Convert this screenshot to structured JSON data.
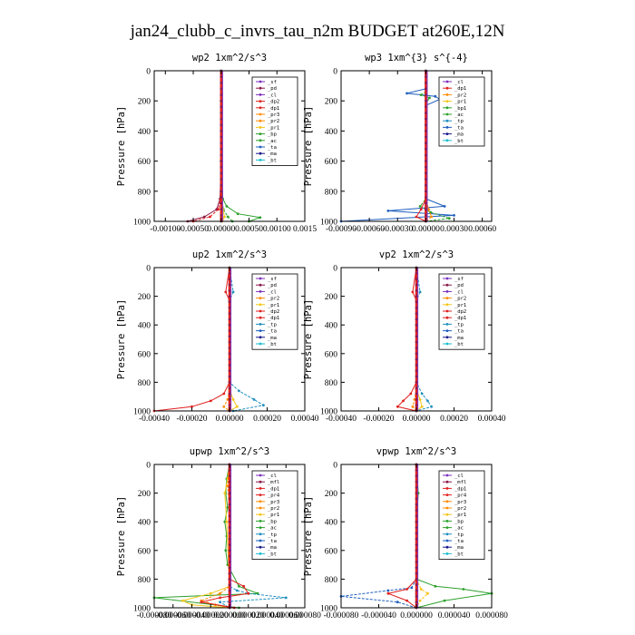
{
  "figure": {
    "title": "jan24_clubb_c_invrs_tau_n2m  BUDGET at260E,12N"
  },
  "colors": {
    "sf": "#7b2fbe",
    "pd": "#8b1a4a",
    "cl": "#7b2fbe",
    "dp2": "#e0201e",
    "dp1": "#e0201e",
    "pr3": "#ff8c00",
    "pr2": "#ff8c00",
    "pr1": "#f5c518",
    "bp": "#2ca02c",
    "ac": "#2ca02c",
    "ta": "#1f5fbf",
    "tp": "#1f8fbf",
    "ma": "#1a1a8c",
    "bt": "#17becf",
    "mfl": "#8b1a4a",
    "pr4": "#e0201e",
    "bp1": "#2ca02c",
    "budget_line": "#e0201e"
  },
  "chart_data": [
    {
      "type": "line",
      "title": "wp2  1xm^2/s^3",
      "ylabel": "Pressure [hPa]",
      "xlim": [
        -0.0012,
        0.0015
      ],
      "ylim": [
        1000,
        0
      ],
      "x_ticks": [
        -0.001,
        -0.0005,
        0.0,
        0.0005,
        0.001,
        0.0015
      ],
      "x_tick_labels": [
        "-0.00100",
        "-0.00050",
        "0.00000",
        "0.00050",
        "0.00100",
        "0.0015"
      ],
      "y_ticks": [
        0,
        200,
        400,
        600,
        800,
        1000
      ],
      "y_tick_labels": [
        "0",
        "200",
        "400",
        "600",
        "800",
        "1000"
      ],
      "legend_position": "top-right",
      "legend": [
        "_sf",
        "_pd",
        "_cl",
        "_dp2",
        "_dp1",
        "_pr3",
        "_pr2",
        "_pr1",
        "_bp",
        "_ac",
        "_ta",
        "_ma",
        "_bt"
      ],
      "series": [
        {
          "key": "pd",
          "name": "_pd",
          "x": [
            0,
            0,
            0,
            -2e-05,
            -8e-05,
            -0.0003,
            -0.0006
          ],
          "y": [
            0,
            200,
            600,
            850,
            920,
            970,
            1000
          ]
        },
        {
          "key": "dp1",
          "name": "_dp1",
          "x": [
            0,
            0,
            0,
            -1e-05,
            -5e-05,
            -0.0002,
            -0.0005
          ],
          "y": [
            0,
            200,
            600,
            850,
            920,
            970,
            1000
          ]
        },
        {
          "key": "ac",
          "name": "_ac",
          "x": [
            0,
            1e-05,
            0,
            3e-05,
            0.0001,
            0.0003,
            0.0007,
            0.0005
          ],
          "y": [
            0,
            150,
            600,
            850,
            900,
            950,
            975,
            1000
          ]
        },
        {
          "key": "bp",
          "name": "_bp",
          "x": [
            0,
            0,
            0,
            1e-05,
            4e-05,
            0.00012,
            0.0002
          ],
          "y": [
            0,
            200,
            600,
            850,
            920,
            970,
            1000
          ]
        },
        {
          "key": "pr1",
          "name": "_pr1",
          "x": [
            0,
            0,
            0,
            1e-05,
            3e-05,
            6e-05,
            2e-05
          ],
          "y": [
            0,
            200,
            600,
            850,
            920,
            970,
            1000
          ]
        },
        {
          "key": "bt",
          "name": "_bt",
          "x": [
            0,
            0,
            0,
            0,
            0,
            0
          ],
          "y": [
            0,
            200,
            400,
            600,
            800,
            1000
          ]
        }
      ]
    },
    {
      "type": "line",
      "title": "wp3  1xm^{3} s^{-4}",
      "ylabel": "Pressure [hPa]",
      "xlim": [
        -0.0009,
        0.0007
      ],
      "ylim": [
        1000,
        0
      ],
      "x_ticks": [
        -0.0009,
        -0.0006,
        -0.0003,
        0.0,
        0.0003,
        0.0006
      ],
      "x_tick_labels": [
        "-0.00090",
        "-0.00060",
        "-0.00030",
        "0.00000",
        "0.00030",
        "0.00060"
      ],
      "y_ticks": [
        0,
        200,
        400,
        600,
        800,
        1000
      ],
      "y_tick_labels": [
        "0",
        "200",
        "400",
        "600",
        "800",
        "1000"
      ],
      "legend_position": "top-right",
      "legend": [
        "_cl",
        "_dp1",
        "_pr2",
        "_pr1",
        "_bp1",
        "_ac",
        "_tp",
        "_ta",
        "_ma",
        "_bt"
      ],
      "series": [
        {
          "key": "ta",
          "name": "_ta",
          "x": [
            0,
            0,
            -0.0002,
            0.0001,
            0.00015,
            0,
            0,
            0.0002,
            -0.0004,
            0.0003,
            -0.0009
          ],
          "y": [
            0,
            120,
            150,
            170,
            190,
            230,
            850,
            900,
            930,
            960,
            1000
          ]
        },
        {
          "key": "ac",
          "name": "_ac",
          "x": [
            0,
            0,
            -5e-05,
            4e-05,
            0,
            0,
            -6e-05,
            5e-05,
            0.00025,
            0
          ],
          "y": [
            0,
            140,
            160,
            180,
            220,
            850,
            900,
            940,
            980,
            1000
          ]
        },
        {
          "key": "dp1",
          "name": "_dp1",
          "x": [
            0,
            0,
            0,
            -5e-05,
            -0.0001,
            0
          ],
          "y": [
            0,
            400,
            850,
            920,
            970,
            1000
          ]
        },
        {
          "key": "pr2",
          "name": "_pr2",
          "x": [
            0,
            0,
            0,
            3e-05,
            6e-05,
            0
          ],
          "y": [
            0,
            400,
            850,
            920,
            970,
            1000
          ]
        },
        {
          "key": "bt",
          "name": "_bt",
          "x": [
            0,
            0,
            0,
            0
          ],
          "y": [
            0,
            400,
            800,
            1000
          ]
        }
      ]
    },
    {
      "type": "line",
      "title": "up2  1xm^2/s^3",
      "ylabel": "Pressure [hPa]",
      "xlim": [
        -0.0004,
        0.0004
      ],
      "ylim": [
        1000,
        0
      ],
      "x_ticks": [
        -0.0004,
        -0.0002,
        0.0,
        0.0002,
        0.0004
      ],
      "x_tick_labels": [
        "-0.00040",
        "-0.00020",
        "0.00000",
        "0.00020",
        "0.00040"
      ],
      "y_ticks": [
        0,
        200,
        400,
        600,
        800,
        1000
      ],
      "y_tick_labels": [
        "0",
        "200",
        "400",
        "600",
        "800",
        "1000"
      ],
      "legend_position": "top-right",
      "legend": [
        "_sf",
        "_pd",
        "_cl",
        "_pr2",
        "_pr1",
        "_dp2",
        "_dp1",
        "_tp",
        "_ta",
        "_ma",
        "_bt"
      ],
      "series": [
        {
          "key": "dp2",
          "name": "_dp2",
          "x": [
            0,
            -2e-05,
            0,
            0,
            -3e-05,
            -0.0001,
            -0.0002,
            -0.0004
          ],
          "y": [
            0,
            170,
            230,
            800,
            880,
            930,
            970,
            1000
          ]
        },
        {
          "key": "tp",
          "name": "_tp",
          "x": [
            0,
            2e-05,
            0,
            0,
            5e-05,
            0.00013,
            0.00018,
            2e-05
          ],
          "y": [
            0,
            170,
            230,
            800,
            860,
            920,
            960,
            1000
          ]
        },
        {
          "key": "pr1",
          "name": "_pr1",
          "x": [
            0,
            0,
            0,
            2e-05,
            4e-05,
            0
          ],
          "y": [
            0,
            400,
            850,
            920,
            970,
            1000
          ]
        },
        {
          "key": "pr2",
          "name": "_pr2",
          "x": [
            0,
            0,
            0,
            -1e-05,
            -3e-05,
            0
          ],
          "y": [
            0,
            400,
            850,
            920,
            970,
            1000
          ]
        },
        {
          "key": "bt",
          "name": "_bt",
          "x": [
            0,
            0,
            0,
            0
          ],
          "y": [
            0,
            400,
            800,
            1000
          ]
        }
      ]
    },
    {
      "type": "line",
      "title": "vp2  1xm^2/s^3",
      "ylabel": "Pressure [hPa]",
      "xlim": [
        -0.0004,
        0.0004
      ],
      "ylim": [
        1000,
        0
      ],
      "x_ticks": [
        -0.0004,
        -0.0002,
        0.0,
        0.0002,
        0.0004
      ],
      "x_tick_labels": [
        "-0.00040",
        "-0.00020",
        "0.00000",
        "0.00020",
        "0.00040"
      ],
      "y_ticks": [
        0,
        200,
        400,
        600,
        800,
        1000
      ],
      "y_tick_labels": [
        "0",
        "200",
        "400",
        "600",
        "800",
        "1000"
      ],
      "legend_position": "top-right",
      "legend": [
        "_sf",
        "_pd",
        "_cl",
        "_pr2",
        "_pr1",
        "_dp2",
        "_dp1",
        "_tp",
        "_ta",
        "_ma",
        "_bt"
      ],
      "series": [
        {
          "key": "dp2",
          "name": "_dp2",
          "x": [
            0,
            -2e-05,
            0,
            0,
            -3e-05,
            -7e-05,
            -0.0001,
            0
          ],
          "y": [
            0,
            170,
            230,
            800,
            880,
            930,
            970,
            1000
          ]
        },
        {
          "key": "tp",
          "name": "_tp",
          "x": [
            0,
            2e-05,
            0,
            0,
            3e-05,
            6e-05,
            8e-05,
            0
          ],
          "y": [
            0,
            170,
            230,
            800,
            880,
            930,
            970,
            1000
          ]
        },
        {
          "key": "pr1",
          "name": "_pr1",
          "x": [
            0,
            0,
            0,
            2e-05,
            3e-05,
            0
          ],
          "y": [
            0,
            400,
            850,
            920,
            970,
            1000
          ]
        },
        {
          "key": "pr2",
          "name": "_pr2",
          "x": [
            0,
            0,
            0,
            -1e-05,
            -2e-05,
            0
          ],
          "y": [
            0,
            400,
            850,
            920,
            970,
            1000
          ]
        },
        {
          "key": "bt",
          "name": "_bt",
          "x": [
            0,
            0,
            0,
            0
          ],
          "y": [
            0,
            400,
            800,
            1000
          ]
        }
      ]
    },
    {
      "type": "line",
      "title": "upwp  1xm^2/s^3",
      "ylabel": "Pressure [hPa]",
      "xlim": [
        -8e-05,
        8e-05
      ],
      "ylim": [
        1000,
        0
      ],
      "x_ticks": [
        -8e-05,
        -6e-05,
        -4e-05,
        -2e-05,
        0.0,
        2e-05,
        4e-05,
        6e-05,
        8e-05
      ],
      "x_tick_labels": [
        "-0.000080",
        "-0.000060",
        "-0.000040",
        "-0.000020",
        "0.000000",
        "0.000020",
        "0.000040",
        "0.000060",
        "0.000080"
      ],
      "y_ticks": [
        0,
        200,
        400,
        600,
        800,
        1000
      ],
      "y_tick_labels": [
        "0",
        "200",
        "400",
        "600",
        "800",
        "1000"
      ],
      "legend_position": "top-right",
      "legend": [
        "_cl",
        "_mfl",
        "_dp1",
        "_pr4",
        "_pr3",
        "_pr2",
        "_pr1",
        "_bp",
        "_ac",
        "_tp",
        "_ta",
        "_ma",
        "_bt"
      ],
      "series": [
        {
          "key": "ac",
          "name": "_ac",
          "x": [
            0,
            -3e-06,
            -4e-06,
            -2e-06,
            -5e-06,
            -3e-06,
            -4e-06,
            -2e-06,
            1e-05,
            3e-05,
            -8e-05,
            1e-05
          ],
          "y": [
            0,
            100,
            200,
            300,
            400,
            500,
            600,
            700,
            850,
            900,
            930,
            1000
          ]
        },
        {
          "key": "tp",
          "name": "_tp",
          "x": [
            0,
            0,
            0,
            0,
            8e-06,
            2e-05,
            6e-05,
            -1e-05,
            0
          ],
          "y": [
            0,
            300,
            600,
            850,
            880,
            900,
            930,
            960,
            1000
          ]
        },
        {
          "key": "pr1",
          "name": "_pr1",
          "x": [
            0,
            -2e-06,
            -5e-06,
            -3e-06,
            0,
            -2e-05,
            -5e-05,
            -4e-05,
            0
          ],
          "y": [
            0,
            100,
            200,
            400,
            850,
            900,
            950,
            980,
            1000
          ]
        },
        {
          "key": "pr2",
          "name": "_pr2",
          "x": [
            0,
            -2e-06,
            0,
            0,
            -1e-05,
            -3e-05,
            -1.5e-05,
            0
          ],
          "y": [
            0,
            150,
            300,
            850,
            900,
            950,
            980,
            1000
          ]
        },
        {
          "key": "dp1",
          "name": "_dp1",
          "x": [
            0,
            0,
            0,
            1.5e-05,
            2e-05,
            -1e-05,
            -3e-05,
            5e-06
          ],
          "y": [
            0,
            400,
            800,
            850,
            900,
            930,
            960,
            1000
          ]
        },
        {
          "key": "cl",
          "name": "_cl",
          "x": [
            0,
            0,
            0,
            0,
            0
          ],
          "y": [
            0,
            300,
            600,
            900,
            1000
          ]
        }
      ]
    },
    {
      "type": "line",
      "title": "vpwp  1xm^2/s^3",
      "ylabel": "Pressure [hPa]",
      "xlim": [
        -8e-05,
        8e-05
      ],
      "ylim": [
        1000,
        0
      ],
      "x_ticks": [
        -8e-05,
        -4e-05,
        0.0,
        4e-05,
        8e-05
      ],
      "x_tick_labels": [
        "-0.000080",
        "-0.000040",
        "0.000000",
        "0.000040",
        "0.000080"
      ],
      "y_ticks": [
        0,
        200,
        400,
        600,
        800,
        1000
      ],
      "y_tick_labels": [
        "0",
        "200",
        "400",
        "600",
        "800",
        "1000"
      ],
      "legend_position": "top-right",
      "legend": [
        "_cl",
        "_mfl",
        "_dp1",
        "_pr4",
        "_pr3",
        "_pr2",
        "_pr1",
        "_bp",
        "_ac",
        "_tp",
        "_ta",
        "_ma",
        "_bt"
      ],
      "series": [
        {
          "key": "ac",
          "name": "_ac",
          "x": [
            0,
            2e-06,
            0,
            0,
            2e-05,
            5e-05,
            8e-05,
            3e-05,
            0
          ],
          "y": [
            0,
            200,
            400,
            800,
            850,
            870,
            900,
            950,
            1000
          ]
        },
        {
          "key": "ta",
          "name": "_ta",
          "x": [
            0,
            0,
            0,
            -5e-06,
            -3e-05,
            -8e-05,
            -2e-05,
            0
          ],
          "y": [
            0,
            400,
            800,
            860,
            880,
            920,
            960,
            1000
          ]
        },
        {
          "key": "dp1",
          "name": "_dp1",
          "x": [
            0,
            0,
            0,
            -1e-05,
            -3e-05,
            -1e-05,
            0
          ],
          "y": [
            0,
            400,
            800,
            870,
            900,
            950,
            1000
          ]
        },
        {
          "key": "pr1",
          "name": "_pr1",
          "x": [
            0,
            0,
            0,
            5e-06,
            1.2e-05,
            4e-06,
            0
          ],
          "y": [
            0,
            400,
            800,
            870,
            900,
            950,
            1000
          ]
        },
        {
          "key": "cl",
          "name": "_cl",
          "x": [
            0,
            0,
            0,
            0,
            0
          ],
          "y": [
            0,
            300,
            600,
            900,
            1000
          ]
        }
      ]
    }
  ]
}
